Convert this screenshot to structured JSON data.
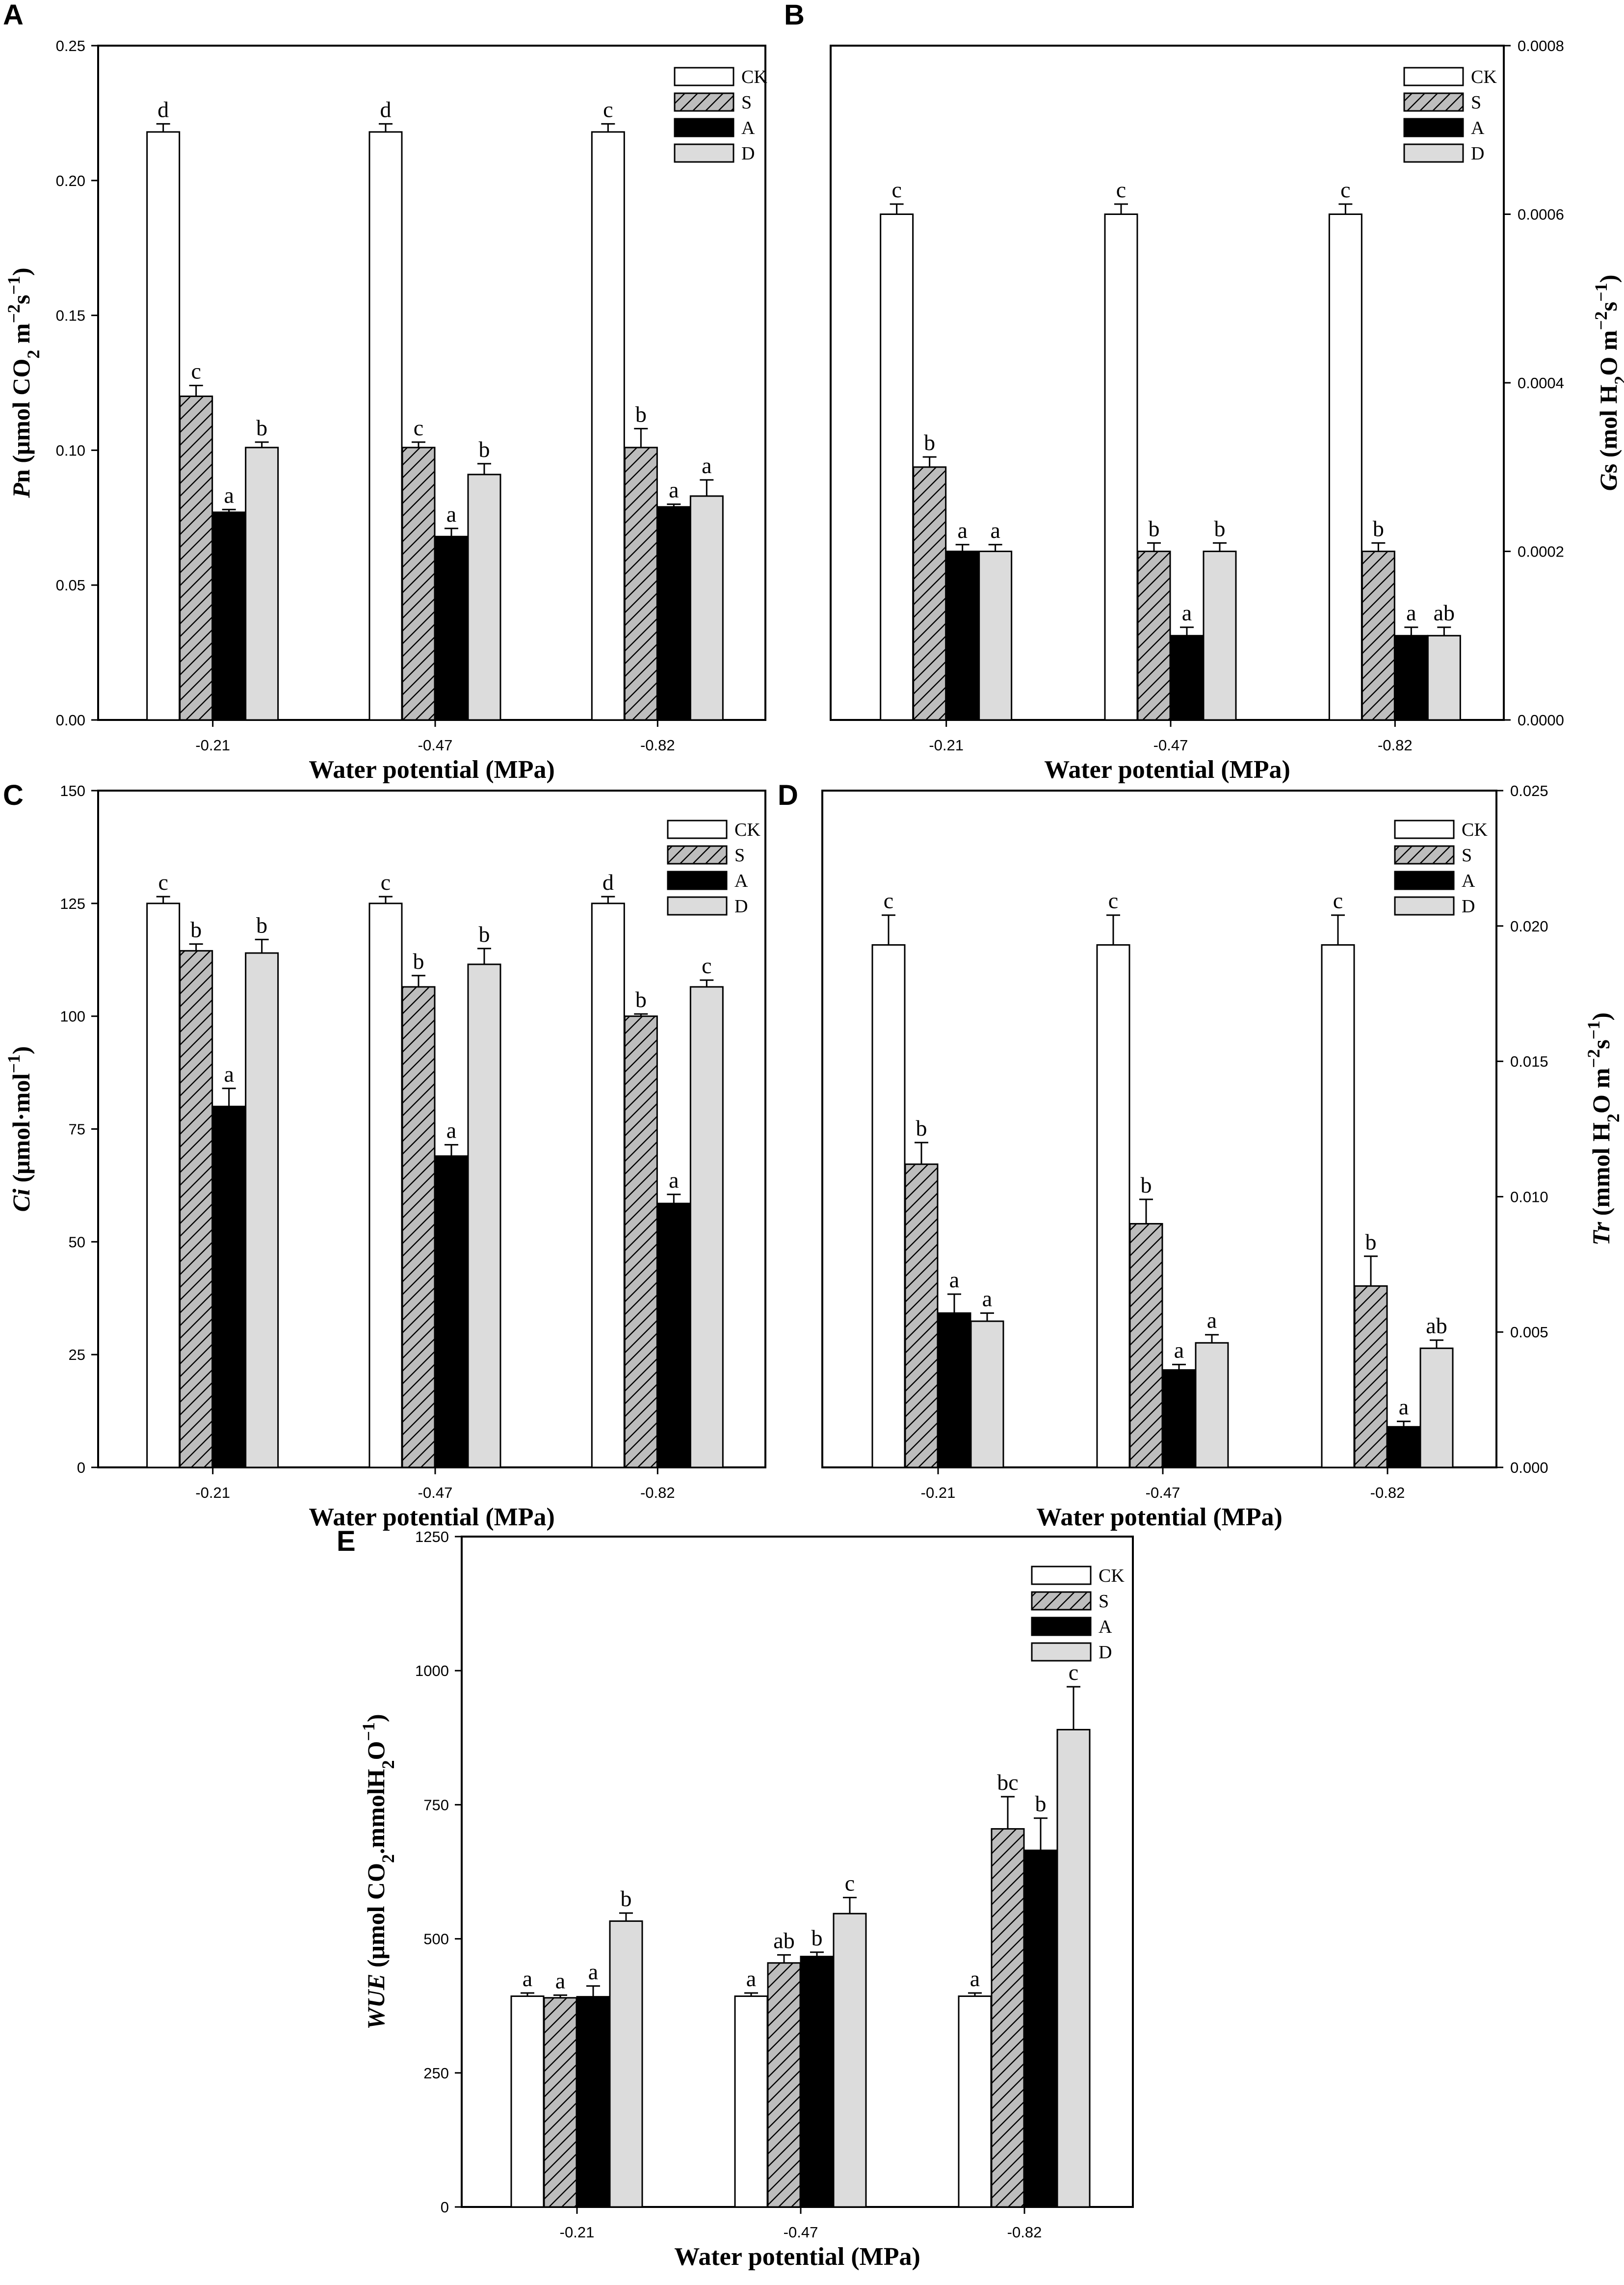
{
  "chart_data": [
    {
      "type": "bar",
      "panel": "A",
      "categories": [
        "-0.21",
        "-0.47",
        "-0.82"
      ],
      "xlabel": "Water potential (MPa)",
      "ylabel_parts": {
        "italic": "P",
        "normal": "n (μmol CO",
        "sub": "2",
        "tail": " m",
        "sup1": "−2",
        "mid": "s",
        "sup2": "−1",
        "end": ")"
      },
      "ylim": [
        0,
        0.25
      ],
      "yticks": [
        "0.00",
        "0.05",
        "0.10",
        "0.15",
        "0.20",
        "0.25"
      ],
      "ytick_values": [
        0,
        0.05,
        0.1,
        0.15,
        0.2,
        0.25
      ],
      "yaxis_side": "left",
      "series": [
        {
          "name": "CK",
          "values": [
            0.218,
            0.218,
            0.218
          ],
          "errors": [
            0.003,
            0.003,
            0.003
          ],
          "labels": [
            "d",
            "d",
            "c"
          ]
        },
        {
          "name": "S",
          "values": [
            0.12,
            0.101,
            0.101
          ],
          "errors": [
            0.004,
            0.002,
            0.007
          ],
          "labels": [
            "c",
            "c",
            "b"
          ]
        },
        {
          "name": "A",
          "values": [
            0.077,
            0.068,
            0.079
          ],
          "errors": [
            0.001,
            0.003,
            0.001
          ],
          "labels": [
            "a",
            "a",
            "a"
          ]
        },
        {
          "name": "D",
          "values": [
            0.101,
            0.091,
            0.083
          ],
          "errors": [
            0.002,
            0.004,
            0.006
          ],
          "labels": [
            "b",
            "b",
            "a"
          ]
        }
      ]
    },
    {
      "type": "bar",
      "panel": "B",
      "categories": [
        "-0.21",
        "-0.47",
        "-0.82"
      ],
      "xlabel": "Water potential (MPa)",
      "ylabel_parts": {
        "italic": "G",
        "normal": "s (mol H",
        "sub": "2",
        "tail": "O m",
        "sup1": "−2",
        "mid": "s",
        "sup2": "−1",
        "end": ")"
      },
      "ylim": [
        0,
        0.0008
      ],
      "yticks": [
        "0.0000",
        "0.0002",
        "0.0004",
        "0.0006",
        "0.0008"
      ],
      "ytick_values": [
        0,
        0.0002,
        0.0004,
        0.0006,
        0.0008
      ],
      "yaxis_side": "right",
      "series": [
        {
          "name": "CK",
          "values": [
            0.0006,
            0.0006,
            0.0006
          ],
          "errors": [
            1.2e-05,
            1.2e-05,
            1.2e-05
          ],
          "labels": [
            "c",
            "c",
            "c"
          ]
        },
        {
          "name": "S",
          "values": [
            0.0003,
            0.0002,
            0.0002
          ],
          "errors": [
            1.2e-05,
            1e-05,
            1e-05
          ],
          "labels": [
            "b",
            "b",
            "b"
          ]
        },
        {
          "name": "A",
          "values": [
            0.0002,
            0.0001,
            0.0001
          ],
          "errors": [
            8e-06,
            1e-05,
            1e-05
          ],
          "labels": [
            "a",
            "a",
            "a"
          ]
        },
        {
          "name": "D",
          "values": [
            0.0002,
            0.0002,
            0.0001
          ],
          "errors": [
            8e-06,
            1e-05,
            1e-05
          ],
          "labels": [
            "a",
            "b",
            "ab"
          ]
        }
      ]
    },
    {
      "type": "bar",
      "panel": "C",
      "categories": [
        "-0.21",
        "-0.47",
        "-0.82"
      ],
      "xlabel": "Water potential (MPa)",
      "ylabel_parts": {
        "italic": "Ci",
        "normal": " (μmol·mol",
        "sub": "",
        "tail": "",
        "sup1": "−1",
        "mid": "",
        "sup2": "",
        "end": ")"
      },
      "ylim": [
        0,
        150
      ],
      "yticks": [
        "0",
        "25",
        "50",
        "75",
        "100",
        "125",
        "150"
      ],
      "ytick_values": [
        0,
        25,
        50,
        75,
        100,
        125,
        150
      ],
      "yaxis_side": "left",
      "series": [
        {
          "name": "CK",
          "values": [
            125,
            125,
            125
          ],
          "errors": [
            1.5,
            1.5,
            1.5
          ],
          "labels": [
            "c",
            "c",
            "d"
          ]
        },
        {
          "name": "S",
          "values": [
            114.5,
            106.5,
            100
          ],
          "errors": [
            1.5,
            2.5,
            0.5
          ],
          "labels": [
            "b",
            "b",
            "b"
          ]
        },
        {
          "name": "A",
          "values": [
            80,
            69,
            58.5
          ],
          "errors": [
            4,
            2.5,
            2
          ],
          "labels": [
            "a",
            "a",
            "a"
          ]
        },
        {
          "name": "D",
          "values": [
            114,
            111.5,
            106.5
          ],
          "errors": [
            3,
            3.5,
            1.5
          ],
          "labels": [
            "b",
            "b",
            "c"
          ]
        }
      ]
    },
    {
      "type": "bar",
      "panel": "D",
      "categories": [
        "-0.21",
        "-0.47",
        "-0.82"
      ],
      "xlabel": "Water potential (MPa)",
      "ylabel_parts": {
        "italic": "Tr",
        "normal": " (mmol H",
        "sub": "2",
        "tail": "O m",
        "sup1": "−2",
        "mid": "s",
        "sup2": "−1",
        "end": ")"
      },
      "ylim": [
        0,
        0.025
      ],
      "yticks": [
        "0.000",
        "0.005",
        "0.010",
        "0.015",
        "0.020",
        "0.025"
      ],
      "ytick_values": [
        0,
        0.005,
        0.01,
        0.015,
        0.02,
        0.025
      ],
      "yaxis_side": "right",
      "series": [
        {
          "name": "CK",
          "values": [
            0.0193,
            0.0193,
            0.0193
          ],
          "errors": [
            0.0011,
            0.0011,
            0.0011
          ],
          "labels": [
            "c",
            "c",
            "c"
          ]
        },
        {
          "name": "S",
          "values": [
            0.0112,
            0.009,
            0.0067
          ],
          "errors": [
            0.0008,
            0.0009,
            0.0011
          ],
          "labels": [
            "b",
            "b",
            "b"
          ]
        },
        {
          "name": "A",
          "values": [
            0.0057,
            0.0036,
            0.0015
          ],
          "errors": [
            0.0007,
            0.0002,
            0.0002
          ],
          "labels": [
            "a",
            "a",
            "a"
          ]
        },
        {
          "name": "D",
          "values": [
            0.0054,
            0.0046,
            0.0044
          ],
          "errors": [
            0.0003,
            0.0003,
            0.0003
          ],
          "labels": [
            "a",
            "a",
            "ab"
          ]
        }
      ]
    },
    {
      "type": "bar",
      "panel": "E",
      "categories": [
        "-0.21",
        "-0.47",
        "-0.82"
      ],
      "xlabel": "Water potential (MPa)",
      "ylabel_parts": {
        "italic": "WUE",
        "normal": " (μmol CO",
        "sub": "2",
        "tail": ".mmolH",
        "sub2": "2",
        "tail2": "O",
        "sup1": "−1",
        "mid": "",
        "sup2": "",
        "end": ")"
      },
      "ylim": [
        0,
        1250
      ],
      "yticks": [
        "0",
        "250",
        "500",
        "750",
        "1000",
        "1250"
      ],
      "ytick_values": [
        0,
        250,
        500,
        750,
        1000,
        1250
      ],
      "yaxis_side": "left",
      "series": [
        {
          "name": "CK",
          "values": [
            393,
            393,
            393
          ],
          "errors": [
            6,
            6,
            6
          ],
          "labels": [
            "a",
            "a",
            "a"
          ]
        },
        {
          "name": "S",
          "values": [
            390,
            455,
            705
          ],
          "errors": [
            5,
            15,
            60
          ],
          "labels": [
            "a",
            "ab",
            "bc"
          ]
        },
        {
          "name": "A",
          "values": [
            392,
            467,
            665
          ],
          "errors": [
            20,
            8,
            60
          ],
          "labels": [
            "a",
            "b",
            "b"
          ]
        },
        {
          "name": "D",
          "values": [
            533,
            547,
            890
          ],
          "errors": [
            15,
            30,
            80
          ],
          "labels": [
            "b",
            "c",
            "c"
          ]
        }
      ]
    }
  ],
  "legend": [
    "CK",
    "S",
    "A",
    "D"
  ],
  "colors": {
    "CK": "#ffffff",
    "S": "#bdbdbd",
    "A": "#000000",
    "D": "#dcdcdc",
    "axis": "#000000"
  }
}
